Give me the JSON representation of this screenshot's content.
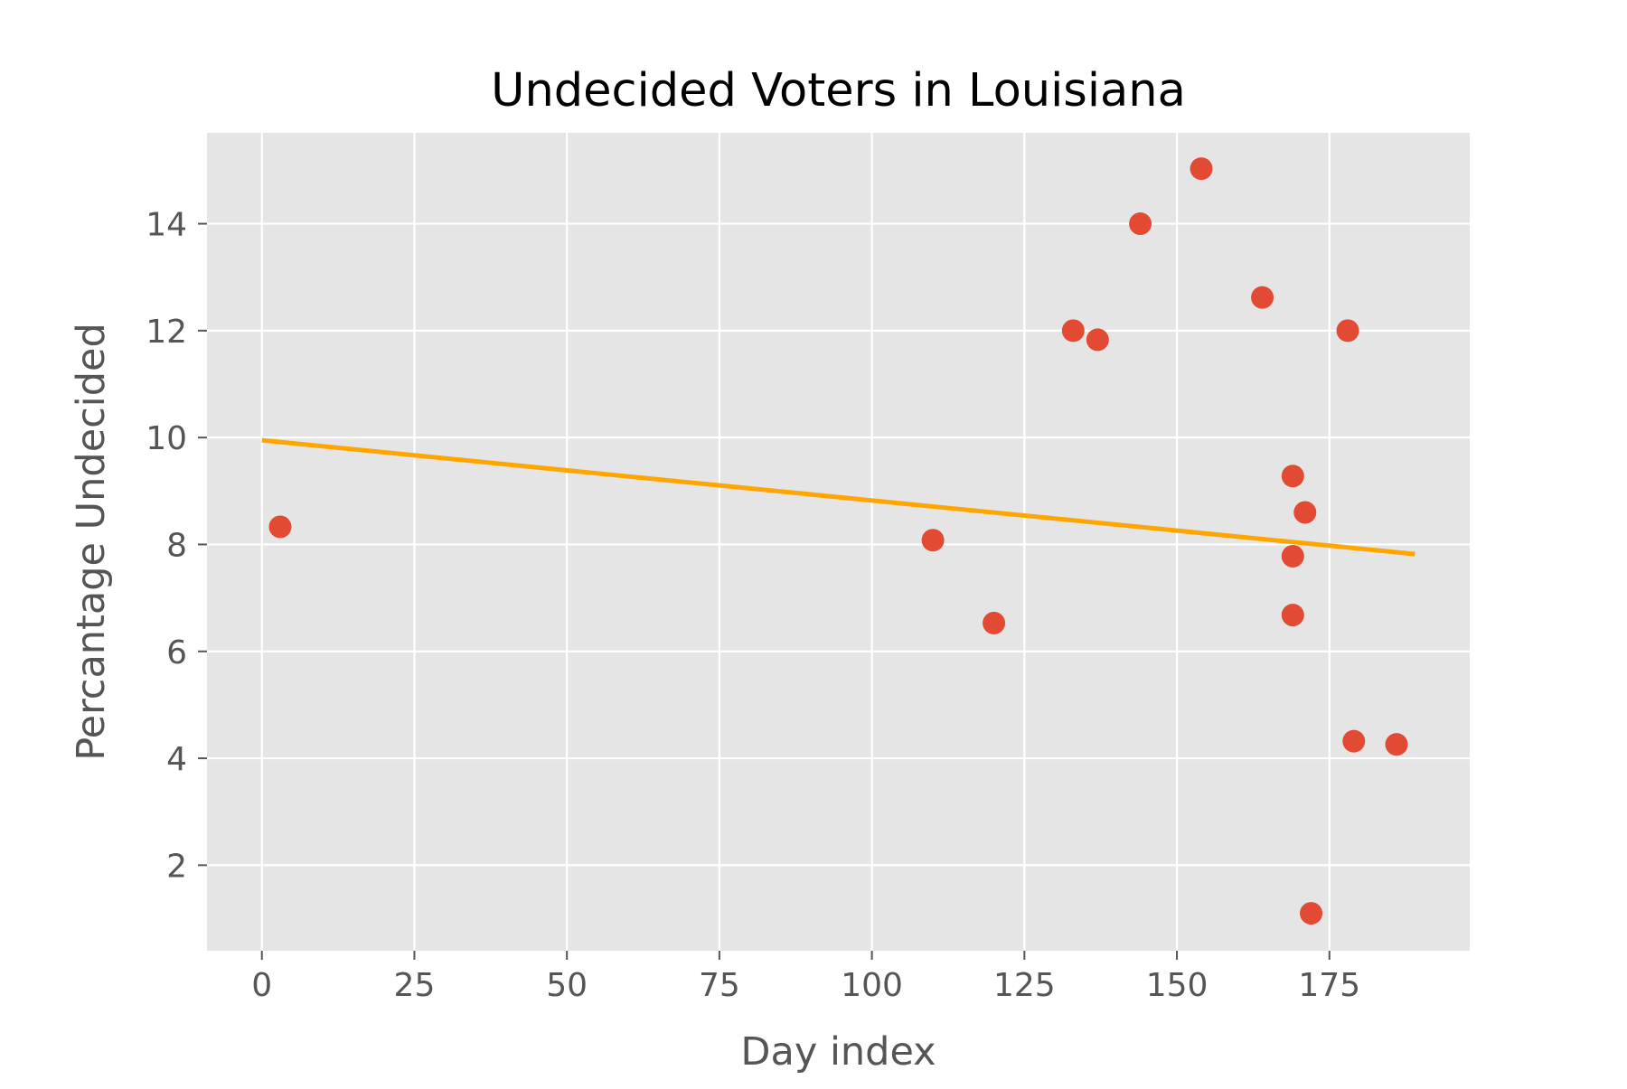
{
  "chart_data": {
    "type": "scatter",
    "title": "Undecided Voters in Louisiana",
    "xlabel": "Day index",
    "ylabel": "Percantage Undecided",
    "xlim": [
      -9,
      198
    ],
    "ylim": [
      0.4,
      15.7
    ],
    "x_ticks": [
      0,
      25,
      50,
      75,
      100,
      125,
      150,
      175
    ],
    "y_ticks": [
      2,
      4,
      6,
      8,
      10,
      12,
      14
    ],
    "grid": true,
    "legend": "none",
    "series": [
      {
        "kind": "scatter",
        "color": "#e24a33",
        "points": [
          {
            "x": 3,
            "y": 8.33
          },
          {
            "x": 110,
            "y": 8.08
          },
          {
            "x": 120,
            "y": 6.53
          },
          {
            "x": 133,
            "y": 12.0
          },
          {
            "x": 137,
            "y": 11.83
          },
          {
            "x": 144,
            "y": 14.0
          },
          {
            "x": 154,
            "y": 15.03
          },
          {
            "x": 164,
            "y": 12.62
          },
          {
            "x": 169,
            "y": 9.28
          },
          {
            "x": 169,
            "y": 7.78
          },
          {
            "x": 169,
            "y": 6.68
          },
          {
            "x": 171,
            "y": 8.6
          },
          {
            "x": 172,
            "y": 1.1
          },
          {
            "x": 178,
            "y": 12.0
          },
          {
            "x": 179,
            "y": 4.32
          },
          {
            "x": 186,
            "y": 4.26
          }
        ]
      },
      {
        "kind": "line",
        "color": "#ffa500",
        "points": [
          {
            "x": 0,
            "y": 9.95
          },
          {
            "x": 189,
            "y": 7.82
          }
        ]
      }
    ],
    "colors": {
      "plot_background": "#e5e5e5",
      "grid": "#ffffff",
      "tick": "#555555"
    }
  }
}
